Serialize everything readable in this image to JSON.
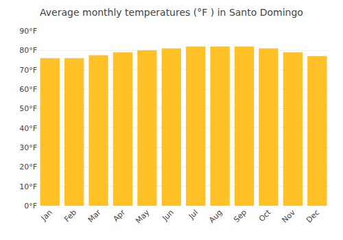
{
  "chart_data": {
    "type": "bar",
    "title": "Average monthly temperatures (°F ) in Santo Domingo",
    "categories": [
      "Jan",
      "Feb",
      "Mar",
      "Apr",
      "May",
      "Jun",
      "Jul",
      "Aug",
      "Sep",
      "Oct",
      "Nov",
      "Dec"
    ],
    "values": [
      76,
      76,
      77.5,
      79,
      80,
      81,
      82,
      82,
      82,
      81,
      79,
      77
    ],
    "color": "#FFC125",
    "ylim": [
      0,
      90
    ],
    "yticks": [
      {
        "value": 0,
        "label": "0°F"
      },
      {
        "value": 10,
        "label": "10°F"
      },
      {
        "value": 20,
        "label": "20°F"
      },
      {
        "value": 30,
        "label": "30°F"
      },
      {
        "value": 40,
        "label": "40°F"
      },
      {
        "value": 50,
        "label": "50°F"
      },
      {
        "value": 60,
        "label": "60°F"
      },
      {
        "value": 70,
        "label": "70°F"
      },
      {
        "value": 80,
        "label": "80°F"
      },
      {
        "value": 90,
        "label": "90°F"
      }
    ],
    "grid": true
  }
}
